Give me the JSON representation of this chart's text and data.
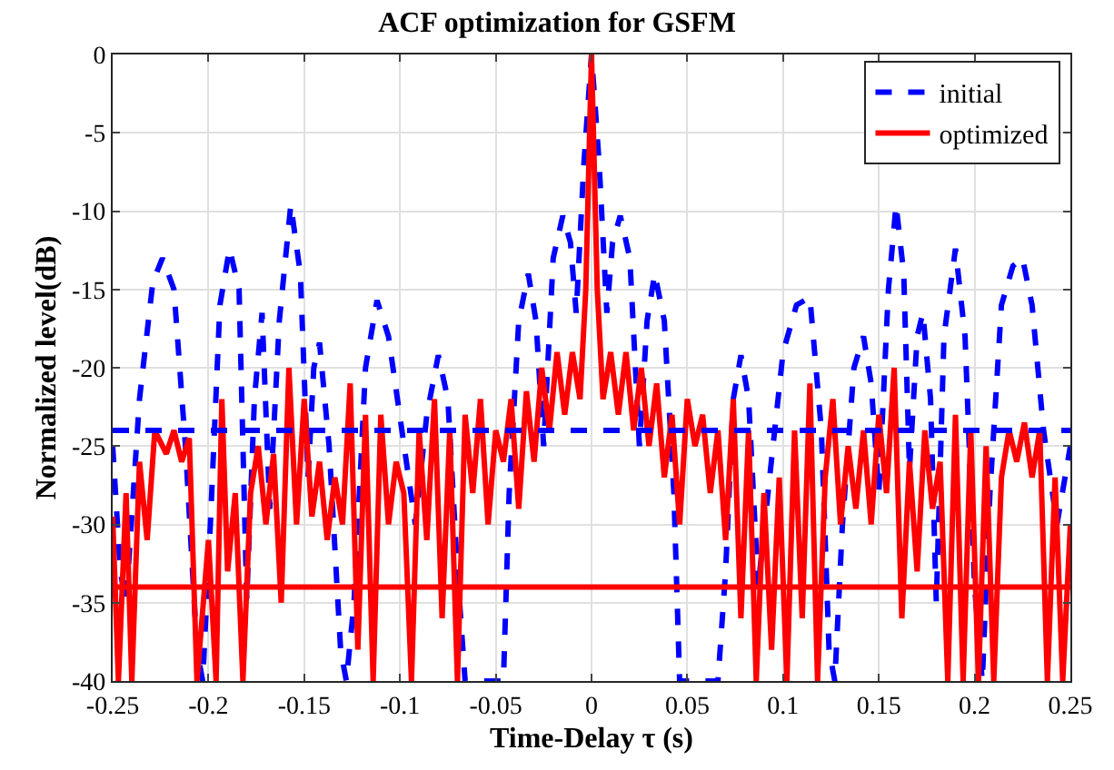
{
  "chart_data": {
    "type": "line",
    "title": "ACF optimization for GSFM",
    "xlabel": "Time-Delay τ (s)",
    "ylabel": "Normalized level(dB)",
    "xlim": [
      -0.25,
      0.25
    ],
    "xticks": [
      -0.25,
      -0.2,
      -0.15,
      -0.1,
      -0.05,
      0,
      0.05,
      0.1,
      0.15,
      0.2,
      0.25
    ],
    "ylim": [
      -40,
      0
    ],
    "yticks": [
      -40,
      -35,
      -30,
      -25,
      -20,
      -15,
      -10,
      -5,
      0
    ],
    "grid": true,
    "legend": "top right",
    "series": [
      {
        "name": "initial",
        "color": "#0000ff",
        "line_style": "dashed",
        "x": [
          -0.25,
          -0.246,
          -0.243,
          -0.236,
          -0.229,
          -0.224,
          -0.218,
          -0.212,
          -0.206,
          -0.203,
          -0.199,
          -0.194,
          -0.189,
          -0.184,
          -0.18,
          -0.176,
          -0.172,
          -0.168,
          -0.163,
          -0.157,
          -0.152,
          -0.148,
          -0.145,
          -0.142,
          -0.137,
          -0.131,
          -0.128,
          -0.124,
          -0.118,
          -0.112,
          -0.106,
          -0.099,
          -0.092,
          -0.086,
          -0.08,
          -0.075,
          -0.07,
          -0.066,
          -0.06,
          -0.053,
          -0.046,
          -0.043,
          -0.038,
          -0.033,
          -0.029,
          -0.025,
          -0.02,
          -0.015,
          -0.011,
          -0.008,
          -0.004,
          0,
          0.004,
          0.008,
          0.011,
          0.015,
          0.02,
          0.025,
          0.029,
          0.033,
          0.038,
          0.043,
          0.046,
          0.053,
          0.06,
          0.066,
          0.07,
          0.074,
          0.078,
          0.082,
          0.087,
          0.093,
          0.1,
          0.107,
          0.114,
          0.12,
          0.124,
          0.127,
          0.131,
          0.137,
          0.142,
          0.146,
          0.15,
          0.155,
          0.159,
          0.163,
          0.166,
          0.17,
          0.173,
          0.177,
          0.18,
          0.184,
          0.19,
          0.195,
          0.2,
          0.204,
          0.208,
          0.214,
          0.22,
          0.225,
          0.23,
          0.236,
          0.243,
          0.25
        ],
        "values": [
          -25,
          -33,
          -35,
          -22,
          -14.5,
          -13,
          -15,
          -25,
          -38,
          -40,
          -30,
          -16,
          -12.4,
          -15,
          -34.8,
          -22,
          -16.5,
          -29,
          -17,
          -9.6,
          -14,
          -27,
          -20,
          -18.4,
          -25,
          -38,
          -40,
          -35,
          -20,
          -15.7,
          -18,
          -24,
          -30,
          -23,
          -19.2,
          -22,
          -33,
          -40,
          -40,
          -40,
          -40,
          -28,
          -17,
          -14,
          -17,
          -25,
          -13,
          -10.3,
          -12,
          -16.5,
          -7,
          0,
          -7,
          -16.5,
          -12,
          -10.3,
          -13,
          -25,
          -17,
          -14,
          -17,
          -28,
          -40,
          -40,
          -40,
          -40,
          -33,
          -22,
          -19.2,
          -22,
          -34,
          -27,
          -19,
          -16,
          -15.5,
          -24,
          -38,
          -40,
          -30,
          -20,
          -18,
          -21,
          -28,
          -15,
          -9.6,
          -14,
          -26.5,
          -18,
          -16.5,
          -22,
          -35,
          -18,
          -12.4,
          -18,
          -34,
          -40,
          -28,
          -16,
          -13.5,
          -13,
          -16,
          -24,
          -30,
          -25
        ]
      },
      {
        "name": "optimized",
        "color": "#ff0000",
        "line_style": "solid",
        "x": [
          -0.25,
          -0.247,
          -0.243,
          -0.24,
          -0.236,
          -0.232,
          -0.228,
          -0.222,
          -0.218,
          -0.214,
          -0.21,
          -0.206,
          -0.2,
          -0.196,
          -0.193,
          -0.19,
          -0.186,
          -0.182,
          -0.178,
          -0.174,
          -0.17,
          -0.166,
          -0.162,
          -0.158,
          -0.154,
          -0.15,
          -0.146,
          -0.142,
          -0.138,
          -0.134,
          -0.13,
          -0.126,
          -0.122,
          -0.118,
          -0.114,
          -0.11,
          -0.106,
          -0.102,
          -0.098,
          -0.094,
          -0.09,
          -0.086,
          -0.082,
          -0.078,
          -0.074,
          -0.07,
          -0.066,
          -0.062,
          -0.058,
          -0.054,
          -0.05,
          -0.046,
          -0.042,
          -0.038,
          -0.034,
          -0.03,
          -0.026,
          -0.022,
          -0.018,
          -0.014,
          -0.01,
          -0.006,
          -0.003,
          0,
          0.003,
          0.006,
          0.01,
          0.014,
          0.018,
          0.022,
          0.026,
          0.03,
          0.034,
          0.038,
          0.042,
          0.046,
          0.05,
          0.054,
          0.058,
          0.062,
          0.066,
          0.07,
          0.074,
          0.078,
          0.082,
          0.086,
          0.09,
          0.094,
          0.098,
          0.102,
          0.106,
          0.11,
          0.114,
          0.118,
          0.122,
          0.126,
          0.13,
          0.134,
          0.138,
          0.142,
          0.146,
          0.15,
          0.154,
          0.158,
          0.162,
          0.166,
          0.17,
          0.174,
          0.178,
          0.182,
          0.186,
          0.19,
          0.194,
          0.198,
          0.202,
          0.206,
          0.21,
          0.214,
          0.218,
          0.222,
          0.226,
          0.23,
          0.234,
          0.238,
          0.242,
          0.246,
          0.25
        ],
        "values": [
          -29.5,
          -40,
          -28,
          -40,
          -26,
          -31,
          -24,
          -25.5,
          -24,
          -26,
          -24.5,
          -40,
          -31,
          -40,
          -22,
          -33,
          -28,
          -40,
          -28,
          -25,
          -30,
          -25.5,
          -35,
          -20,
          -30,
          -22,
          -29.5,
          -26,
          -31,
          -27,
          -30,
          -21,
          -38,
          -23,
          -40,
          -23,
          -30,
          -26,
          -28,
          -40,
          -24,
          -31,
          -22,
          -36,
          -24,
          -40,
          -23,
          -28,
          -22,
          -30,
          -24,
          -26,
          -22,
          -29,
          -21.5,
          -26,
          -20,
          -24,
          -19,
          -23,
          -19,
          -22,
          -15,
          0,
          -15,
          -22,
          -19,
          -23,
          -19,
          -24,
          -20,
          -25,
          -21,
          -27,
          -23,
          -30,
          -22,
          -25,
          -23,
          -28,
          -24,
          -31,
          -22,
          -36,
          -24,
          -40,
          -28,
          -38,
          -27,
          -40,
          -24,
          -36,
          -21,
          -40,
          -27,
          -22,
          -30,
          -25,
          -29,
          -24,
          -30,
          -23,
          -28,
          -20,
          -36,
          -26,
          -33,
          -24,
          -29,
          -26,
          -40,
          -23,
          -40,
          -24,
          -40,
          -25,
          -40,
          -27,
          -24,
          -26,
          -23.5,
          -27,
          -24,
          -40,
          -27,
          -40,
          -30
        ]
      }
    ],
    "ref_lines": [
      {
        "axis": "y",
        "value": -24,
        "color": "#0000ff",
        "line_style": "dashed"
      },
      {
        "axis": "y",
        "value": -34,
        "color": "#ff0000",
        "line_style": "solid"
      }
    ]
  }
}
